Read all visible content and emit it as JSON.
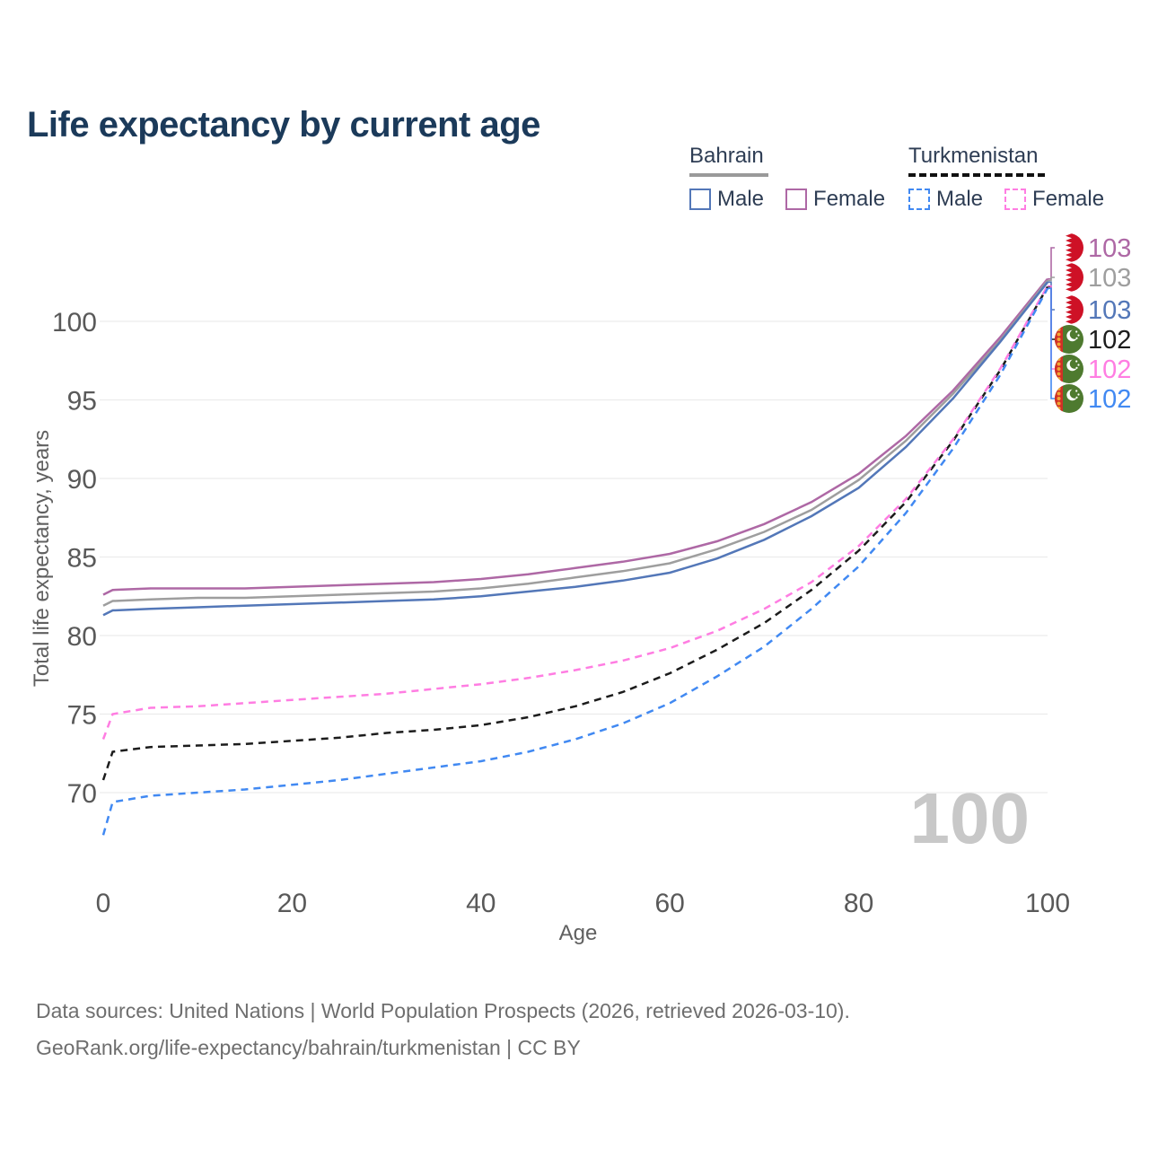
{
  "header": {
    "title": "Life expectancy by current age"
  },
  "legend": {
    "groups": [
      {
        "country": "Bahrain",
        "line_style": "solid",
        "underline_color": "#9a9a9a",
        "items": [
          {
            "label": "Male",
            "color": "#5377b8"
          },
          {
            "label": "Female",
            "color": "#ae68a5"
          }
        ]
      },
      {
        "country": "Turkmenistan",
        "line_style": "dashed",
        "underline_color": "#111111",
        "items": [
          {
            "label": "Male",
            "color": "#4189f2"
          },
          {
            "label": "Female",
            "color": "#ff7de2"
          }
        ]
      }
    ]
  },
  "chart_data": {
    "type": "line",
    "title": "Life expectancy by current age",
    "xlabel": "Age",
    "ylabel": "Total life expectancy, years",
    "xlim": [
      0,
      100
    ],
    "ylim": [
      65,
      104
    ],
    "x_ticks": [
      0,
      20,
      40,
      60,
      80,
      100
    ],
    "y_ticks": [
      70,
      75,
      80,
      85,
      90,
      95,
      100
    ],
    "grid": "horizontal",
    "legend_position": "top-right",
    "watermark": "100",
    "axis_color": "#595959",
    "grid_color": "#ececec",
    "flag_colors": {
      "bahrain_red": "#ce1126",
      "bahrain_white": "#ffffff",
      "turkmenistan_green": "#4e7a2f",
      "turkmenistan_red": "#d22f27",
      "turkmenistan_yellow": "#f0a835"
    },
    "series": [
      {
        "name": "Bahrain Female",
        "country": "Bahrain",
        "sex": "Female",
        "style": "solid",
        "color": "#ae68a5",
        "end_label": "103",
        "label_row": 0,
        "points": [
          [
            0,
            82.6
          ],
          [
            1,
            82.9
          ],
          [
            5,
            83.0
          ],
          [
            10,
            83.0
          ],
          [
            15,
            83.0
          ],
          [
            20,
            83.1
          ],
          [
            25,
            83.2
          ],
          [
            30,
            83.3
          ],
          [
            35,
            83.4
          ],
          [
            40,
            83.6
          ],
          [
            45,
            83.9
          ],
          [
            50,
            84.3
          ],
          [
            55,
            84.7
          ],
          [
            60,
            85.2
          ],
          [
            65,
            86.0
          ],
          [
            70,
            87.1
          ],
          [
            75,
            88.5
          ],
          [
            80,
            90.3
          ],
          [
            85,
            92.7
          ],
          [
            90,
            95.6
          ],
          [
            95,
            99.0
          ],
          [
            100,
            102.7
          ]
        ]
      },
      {
        "name": "Bahrain Both sexes",
        "country": "Bahrain",
        "sex": "Both",
        "style": "solid",
        "color": "#9e9e9e",
        "end_label": "103",
        "label_row": 1,
        "points": [
          [
            0,
            81.9
          ],
          [
            1,
            82.2
          ],
          [
            5,
            82.3
          ],
          [
            10,
            82.4
          ],
          [
            15,
            82.4
          ],
          [
            20,
            82.5
          ],
          [
            25,
            82.6
          ],
          [
            30,
            82.7
          ],
          [
            35,
            82.8
          ],
          [
            40,
            83.0
          ],
          [
            45,
            83.3
          ],
          [
            50,
            83.7
          ],
          [
            55,
            84.1
          ],
          [
            60,
            84.6
          ],
          [
            65,
            85.5
          ],
          [
            70,
            86.6
          ],
          [
            75,
            88.0
          ],
          [
            80,
            89.9
          ],
          [
            85,
            92.4
          ],
          [
            90,
            95.4
          ],
          [
            95,
            98.8
          ],
          [
            100,
            102.6
          ]
        ]
      },
      {
        "name": "Bahrain Male",
        "country": "Bahrain",
        "sex": "Male",
        "style": "solid",
        "color": "#5377b8",
        "end_label": "103",
        "label_row": 2,
        "points": [
          [
            0,
            81.3
          ],
          [
            1,
            81.6
          ],
          [
            5,
            81.7
          ],
          [
            10,
            81.8
          ],
          [
            15,
            81.9
          ],
          [
            20,
            82.0
          ],
          [
            25,
            82.1
          ],
          [
            30,
            82.2
          ],
          [
            35,
            82.3
          ],
          [
            40,
            82.5
          ],
          [
            45,
            82.8
          ],
          [
            50,
            83.1
          ],
          [
            55,
            83.5
          ],
          [
            60,
            84.0
          ],
          [
            65,
            84.9
          ],
          [
            70,
            86.1
          ],
          [
            75,
            87.6
          ],
          [
            80,
            89.4
          ],
          [
            85,
            92.0
          ],
          [
            90,
            95.1
          ],
          [
            95,
            98.7
          ],
          [
            100,
            102.5
          ]
        ]
      },
      {
        "name": "Turkmenistan Both sexes",
        "country": "Turkmenistan",
        "sex": "Both",
        "style": "dashed",
        "color": "#1c1c1c",
        "end_label": "102",
        "label_row": 3,
        "points": [
          [
            0,
            70.8
          ],
          [
            1,
            72.6
          ],
          [
            5,
            72.9
          ],
          [
            10,
            73.0
          ],
          [
            15,
            73.1
          ],
          [
            20,
            73.3
          ],
          [
            25,
            73.5
          ],
          [
            30,
            73.8
          ],
          [
            35,
            74.0
          ],
          [
            40,
            74.3
          ],
          [
            45,
            74.8
          ],
          [
            50,
            75.5
          ],
          [
            55,
            76.4
          ],
          [
            60,
            77.6
          ],
          [
            65,
            79.1
          ],
          [
            70,
            80.8
          ],
          [
            75,
            82.9
          ],
          [
            80,
            85.4
          ],
          [
            85,
            88.5
          ],
          [
            90,
            92.4
          ],
          [
            95,
            96.9
          ],
          [
            100,
            102.2
          ]
        ]
      },
      {
        "name": "Turkmenistan Female",
        "country": "Turkmenistan",
        "sex": "Female",
        "style": "dashed",
        "color": "#ff7de2",
        "end_label": "102",
        "label_row": 4,
        "points": [
          [
            0,
            73.4
          ],
          [
            1,
            75.0
          ],
          [
            5,
            75.4
          ],
          [
            10,
            75.5
          ],
          [
            15,
            75.7
          ],
          [
            20,
            75.9
          ],
          [
            25,
            76.1
          ],
          [
            30,
            76.3
          ],
          [
            35,
            76.6
          ],
          [
            40,
            76.9
          ],
          [
            45,
            77.3
          ],
          [
            50,
            77.8
          ],
          [
            55,
            78.4
          ],
          [
            60,
            79.2
          ],
          [
            65,
            80.3
          ],
          [
            70,
            81.7
          ],
          [
            75,
            83.4
          ],
          [
            80,
            85.7
          ],
          [
            85,
            88.7
          ],
          [
            90,
            92.5
          ],
          [
            95,
            97.0
          ],
          [
            100,
            102.25
          ]
        ]
      },
      {
        "name": "Turkmenistan Male",
        "country": "Turkmenistan",
        "sex": "Male",
        "style": "dashed",
        "color": "#4189f2",
        "end_label": "102",
        "label_row": 5,
        "points": [
          [
            0,
            67.3
          ],
          [
            1,
            69.4
          ],
          [
            5,
            69.8
          ],
          [
            10,
            70.0
          ],
          [
            15,
            70.2
          ],
          [
            20,
            70.5
          ],
          [
            25,
            70.8
          ],
          [
            30,
            71.2
          ],
          [
            35,
            71.6
          ],
          [
            40,
            72.0
          ],
          [
            45,
            72.6
          ],
          [
            50,
            73.4
          ],
          [
            55,
            74.4
          ],
          [
            60,
            75.7
          ],
          [
            65,
            77.4
          ],
          [
            70,
            79.3
          ],
          [
            75,
            81.7
          ],
          [
            80,
            84.4
          ],
          [
            85,
            87.8
          ],
          [
            90,
            91.9
          ],
          [
            95,
            96.6
          ],
          [
            100,
            102.1
          ]
        ]
      }
    ]
  },
  "footer": {
    "line1": "Data sources: United Nations | World Population Prospects (2026, retrieved 2026-03-10).",
    "line2": "GeoRank.org/life-expectancy/bahrain/turkmenistan | CC BY"
  }
}
